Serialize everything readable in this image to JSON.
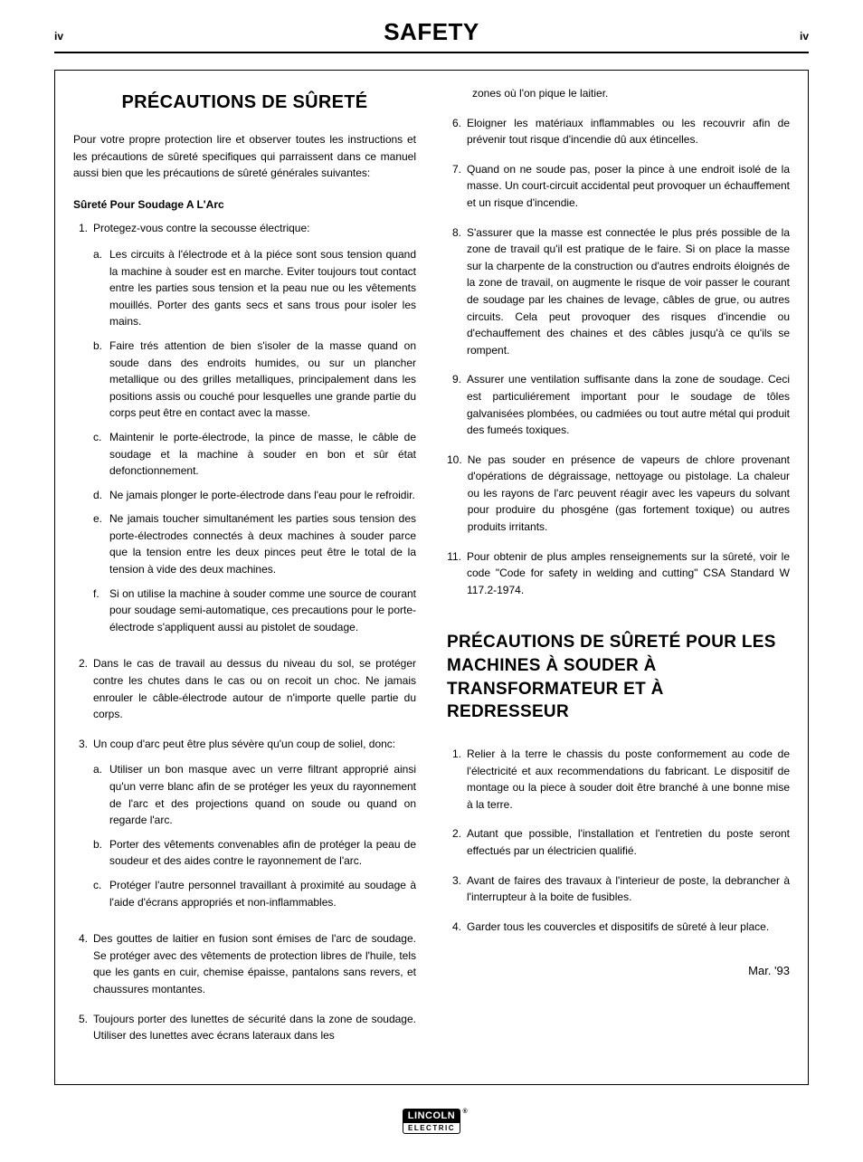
{
  "page": {
    "left_num": "iv",
    "right_num": "iv",
    "header_title": "SAFETY"
  },
  "section1": {
    "title": "PRÉCAUTIONS DE SÛRETÉ",
    "intro": "Pour votre propre protection lire et observer toutes les instructions et les précautions de sûreté specifiques qui parraissent dans ce manuel aussi bien que les précautions de sûreté générales suivantes:",
    "subhead": "Sûreté Pour Soudage A L'Arc",
    "items": [
      {
        "n": "1.",
        "text": "Protegez-vous contre la secousse électrique:",
        "subs": [
          {
            "m": "a.",
            "t": "Les circuits à l'électrode et à la piéce sont sous tension quand la machine à souder est en marche. Eviter toujours tout contact entre les parties sous tension et la peau nue ou les vêtements mouillés. Porter des gants secs et sans trous pour isoler les mains."
          },
          {
            "m": "b.",
            "t": "Faire trés attention de bien s'isoler de la masse quand on soude dans des endroits humides, ou sur un plancher metallique ou des grilles metalliques, principalement dans les positions assis ou couché pour lesquelles une grande partie du corps peut être en contact avec la masse."
          },
          {
            "m": "c.",
            "t": "Maintenir le porte-électrode, la pince de masse, le câble de soudage et la machine à souder en bon et sûr état defonctionnement."
          },
          {
            "m": "d.",
            "t": "Ne jamais plonger le porte-électrode dans l'eau pour le refroidir."
          },
          {
            "m": "e.",
            "t": "Ne jamais toucher simultanément les parties sous tension des porte-électrodes connectés à deux machines à souder parce que la tension entre les deux pinces peut être le total de la tension à vide des deux machines."
          },
          {
            "m": "f.",
            "t": "Si on utilise la machine à souder comme une source de courant pour soudage semi-automatique, ces precautions pour le porte-électrode s'appliquent aussi au pistolet de soudage."
          }
        ]
      },
      {
        "n": "2.",
        "text": "Dans le cas de travail au dessus du niveau du sol, se protéger contre les chutes dans le cas ou on recoit un choc. Ne jamais enrouler le câble-électrode autour de n'importe quelle partie du corps."
      },
      {
        "n": "3.",
        "text": "Un coup d'arc peut être plus sévère qu'un coup de soliel, donc:",
        "subs": [
          {
            "m": "a.",
            "t": "Utiliser un bon masque avec un verre filtrant approprié ainsi qu'un verre blanc afin de se protéger les yeux du rayonnement de l'arc et des projections quand on soude ou quand on regarde l'arc."
          },
          {
            "m": "b.",
            "t": "Porter des vêtements convenables afin de protéger la peau de soudeur et des aides contre le rayonnement de l'arc."
          },
          {
            "m": "c.",
            "t": "Protéger l'autre personnel travaillant à proximité au soudage à l'aide d'écrans appropriés et non-inflammables."
          }
        ]
      },
      {
        "n": "4.",
        "text": "Des gouttes de laitier en fusion sont émises de l'arc de soudage. Se protéger avec des vêtements de protection libres de l'huile, tels que les gants en cuir, chemise épaisse, pantalons sans revers, et chaussures montantes."
      },
      {
        "n": "5.",
        "text": "Toujours porter des lunettes de sécurité dans la zone de soudage. Utiliser des lunettes avec écrans lateraux dans les"
      }
    ],
    "col2_cont": "zones où l'on pique le laitier.",
    "items_col2": [
      {
        "n": "6.",
        "text": "Eloigner les matériaux inflammables ou les recouvrir afin de prévenir tout risque d'incendie dû aux étincelles."
      },
      {
        "n": "7.",
        "text": "Quand on ne soude pas, poser la pince à une endroit isolé de la masse. Un court-circuit accidental peut provoquer un échauffement et un risque d'incendie."
      },
      {
        "n": "8.",
        "text": "S'assurer que la masse est connectée le plus prés possible de la zone de travail qu'il est pratique de le faire. Si on place la masse sur la charpente de la construction ou d'autres endroits éloignés de la zone de travail, on augmente le risque de voir passer le courant de soudage par les chaines de levage, câbles de grue, ou autres circuits. Cela peut provoquer des risques d'incendie ou d'echauffement des chaines et des câbles jusqu'à ce qu'ils se rompent."
      },
      {
        "n": "9.",
        "text": "Assurer une ventilation suffisante dans la zone de soudage. Ceci est particuliérement important pour le soudage de tôles galvanisées plombées, ou cadmiées ou tout autre métal qui produit des fumeés toxiques."
      },
      {
        "n": "10.",
        "text": "Ne pas souder en présence de vapeurs de chlore provenant d'opérations de dégraissage, nettoyage ou pistolage. La chaleur ou les rayons de l'arc peuvent réagir avec les vapeurs du solvant pour produire du phosgéne (gas fortement toxique) ou autres produits irritants."
      },
      {
        "n": "11.",
        "text": "Pour obtenir de plus amples renseignements sur la sûreté, voir le code \"Code for safety in welding and cutting\" CSA Standard W 117.2-1974."
      }
    ]
  },
  "section2": {
    "title": "PRÉCAUTIONS DE SÛRETÉ POUR LES MACHINES À SOUDER À TRANSFORMATEUR ET À REDRESSEUR",
    "items": [
      {
        "n": "1.",
        "text": "Relier à la terre le chassis du poste conformement au code de l'électricité et aux recommendations du fabricant. Le dispositif de montage ou la piece à souder doit être branché à une bonne mise à la terre."
      },
      {
        "n": "2.",
        "text": "Autant que possible, l'installation et l'entretien du poste seront effectués par un électricien qualifié."
      },
      {
        "n": "3.",
        "text": "Avant de faires des travaux à l'interieur de poste, la debrancher à l'interrupteur à la boite de fusibles."
      },
      {
        "n": "4.",
        "text": "Garder tous les couvercles et dispositifs de sûreté à leur place."
      }
    ]
  },
  "date": "Mar. '93",
  "logo": {
    "top": "LINCOLN",
    "bottom": "ELECTRIC"
  }
}
